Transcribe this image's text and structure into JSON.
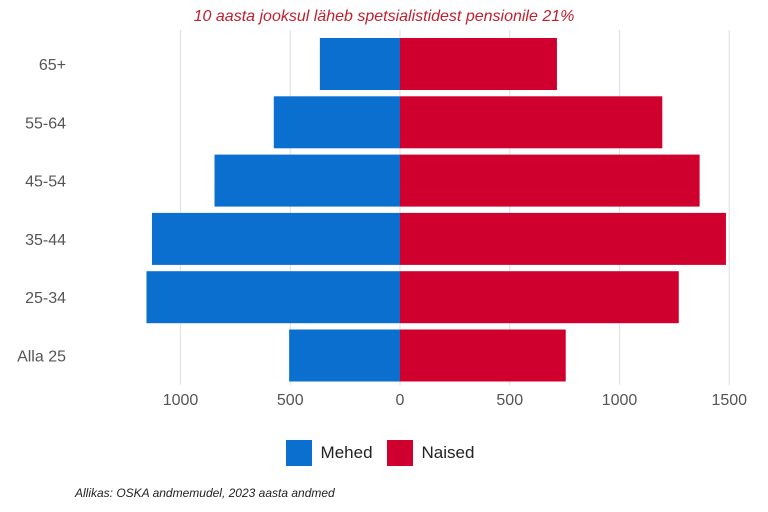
{
  "chart_data": {
    "type": "bar",
    "orientation": "horizontal-population-pyramid",
    "title": "10 aasta jooksul läheb spetsialistidest pensionile 21%",
    "caption": "Allikas: OSKA andmemudel, 2023 aasta andmed",
    "categories": [
      "65+",
      "55-64",
      "45-54",
      "35-44",
      "25-34",
      "Alla 25"
    ],
    "series": [
      {
        "name": "Mehed",
        "color": "#0a6fce",
        "side": "left",
        "values": [
          365,
          575,
          845,
          1130,
          1155,
          505
        ]
      },
      {
        "name": "Naised",
        "color": "#d0002e",
        "side": "right",
        "values": [
          715,
          1195,
          1365,
          1485,
          1270,
          755
        ]
      }
    ],
    "x_ticks": [
      {
        "value": -1000,
        "label": "1000"
      },
      {
        "value": -500,
        "label": "500"
      },
      {
        "value": 0,
        "label": "0"
      },
      {
        "value": 500,
        "label": "500"
      },
      {
        "value": 1000,
        "label": "1000"
      },
      {
        "value": 1500,
        "label": "1500"
      }
    ],
    "xlim": [
      -1200,
      1500
    ],
    "xlabel": "",
    "ylabel": "",
    "grid": "vertical",
    "legend_position": "bottom"
  }
}
